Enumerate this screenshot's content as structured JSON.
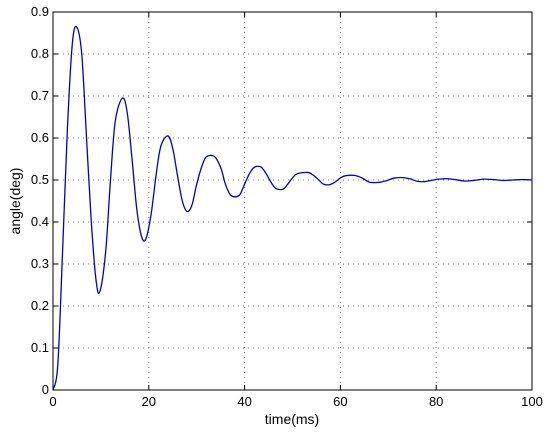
{
  "chart_data": {
    "type": "line",
    "xlabel": "time(ms)",
    "ylabel": "angle(deg)",
    "xlim": [
      0,
      100
    ],
    "ylim": [
      0,
      0.9
    ],
    "xticks": [
      0,
      20,
      40,
      60,
      80,
      100
    ],
    "yticks": [
      0,
      0.1,
      0.2,
      0.3,
      0.4,
      0.5,
      0.6,
      0.7,
      0.8,
      0.9
    ],
    "grid": true,
    "series": [
      {
        "color": "#0000cc",
        "x": [
          0,
          1,
          2,
          3,
          4,
          4.9,
          6,
          7,
          8,
          9,
          9.8,
          11,
          12,
          13,
          14.5,
          15.5,
          16.5,
          17.5,
          18.5,
          19.4,
          20.5,
          21.5,
          22.5,
          24,
          25,
          26,
          27,
          28,
          29,
          30,
          31,
          32,
          33.7,
          35,
          36,
          37,
          38,
          39,
          40,
          41,
          42,
          43.4,
          44.5,
          45.5,
          46.5,
          48,
          49,
          50,
          51,
          53.2,
          54.5,
          55.5,
          56.5,
          57.8,
          59,
          60,
          61,
          62.9,
          64.5,
          66,
          67.7,
          69.5,
          71,
          72.6,
          74.5,
          76,
          77.5,
          79,
          80.5,
          82.3,
          84,
          85.5,
          87,
          88.5,
          90,
          92,
          94,
          96,
          98,
          100
        ],
        "y": [
          0,
          0.06,
          0.33,
          0.62,
          0.82,
          0.865,
          0.8,
          0.6,
          0.4,
          0.26,
          0.235,
          0.33,
          0.5,
          0.64,
          0.695,
          0.66,
          0.55,
          0.43,
          0.365,
          0.36,
          0.42,
          0.51,
          0.58,
          0.605,
          0.575,
          0.51,
          0.45,
          0.425,
          0.44,
          0.49,
          0.53,
          0.555,
          0.556,
          0.53,
          0.49,
          0.465,
          0.46,
          0.465,
          0.49,
          0.515,
          0.53,
          0.531,
          0.515,
          0.495,
          0.48,
          0.478,
          0.49,
          0.505,
          0.515,
          0.518,
          0.51,
          0.5,
          0.49,
          0.489,
          0.496,
          0.505,
          0.51,
          0.511,
          0.505,
          0.495,
          0.494,
          0.498,
          0.504,
          0.506,
          0.503,
          0.497,
          0.496,
          0.499,
          0.502,
          0.503,
          0.501,
          0.498,
          0.498,
          0.5,
          0.502,
          0.501,
          0.499,
          0.5,
          0.501,
          0.5
        ]
      }
    ]
  }
}
